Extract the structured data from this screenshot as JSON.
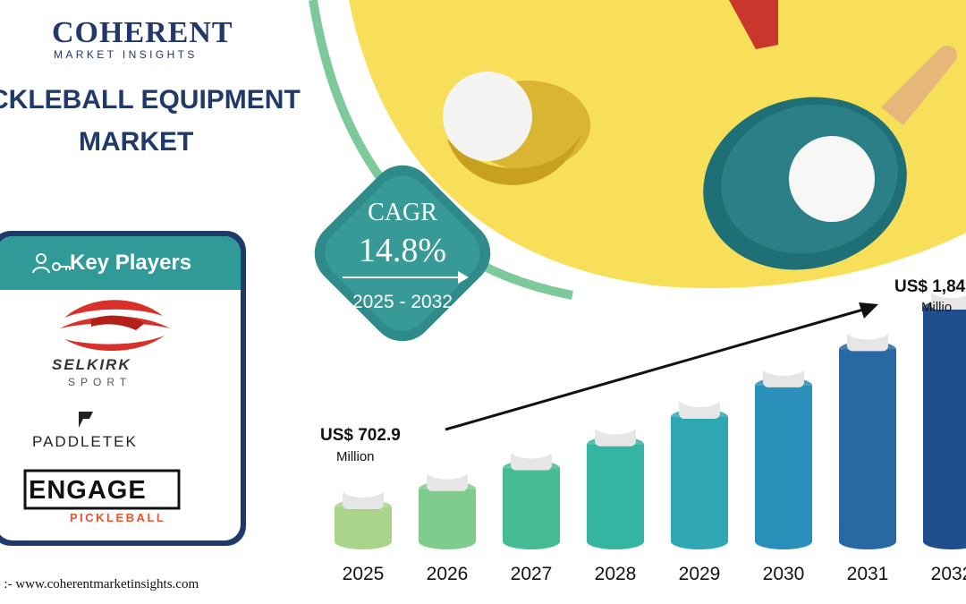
{
  "logo": {
    "name": "COHERENT",
    "tagline": "MARKET INSIGHTS"
  },
  "title": {
    "line1": "CKLEBALL EQUIPMENT",
    "line2": "MARKET"
  },
  "key_players": {
    "heading": "Key Players",
    "selkirk": {
      "name": "SELKIRK",
      "sub": "SPORT"
    },
    "paddletek": {
      "name": "PADDLETEK"
    },
    "engage": {
      "name": "ENGAGE",
      "sub": "PICKLEBALL"
    }
  },
  "cagr": {
    "label": "CAGR",
    "value": "14.8%",
    "period": "2025 - 2032"
  },
  "annotations": {
    "start_value": "US$ 702.9",
    "start_unit": "Million",
    "end_value": "US$ 1,84",
    "end_unit": "Millio"
  },
  "source": "e :- www.coherentmarketinsights.com",
  "colors": {
    "navy": "#1f3a6a",
    "teal": "#2f8f8f",
    "yellow": "#f7df5a",
    "bar_colors": [
      "#a9d48a",
      "#7fcc8c",
      "#46bc93",
      "#35b4a1",
      "#2fa7b2",
      "#2a8fb9",
      "#2868a3",
      "#1e4f8c"
    ]
  },
  "chart_data": {
    "type": "bar",
    "categories": [
      "2025",
      "2026",
      "2027",
      "2028",
      "2029",
      "2030",
      "2031",
      "2032"
    ],
    "values": [
      702.9,
      806.9,
      926.3,
      1063.4,
      1220.8,
      1401.5,
      1608.9,
      1847.0
    ],
    "ylim": [
      0,
      2000
    ],
    "xlabel": "",
    "ylabel": "",
    "grid": false
  }
}
